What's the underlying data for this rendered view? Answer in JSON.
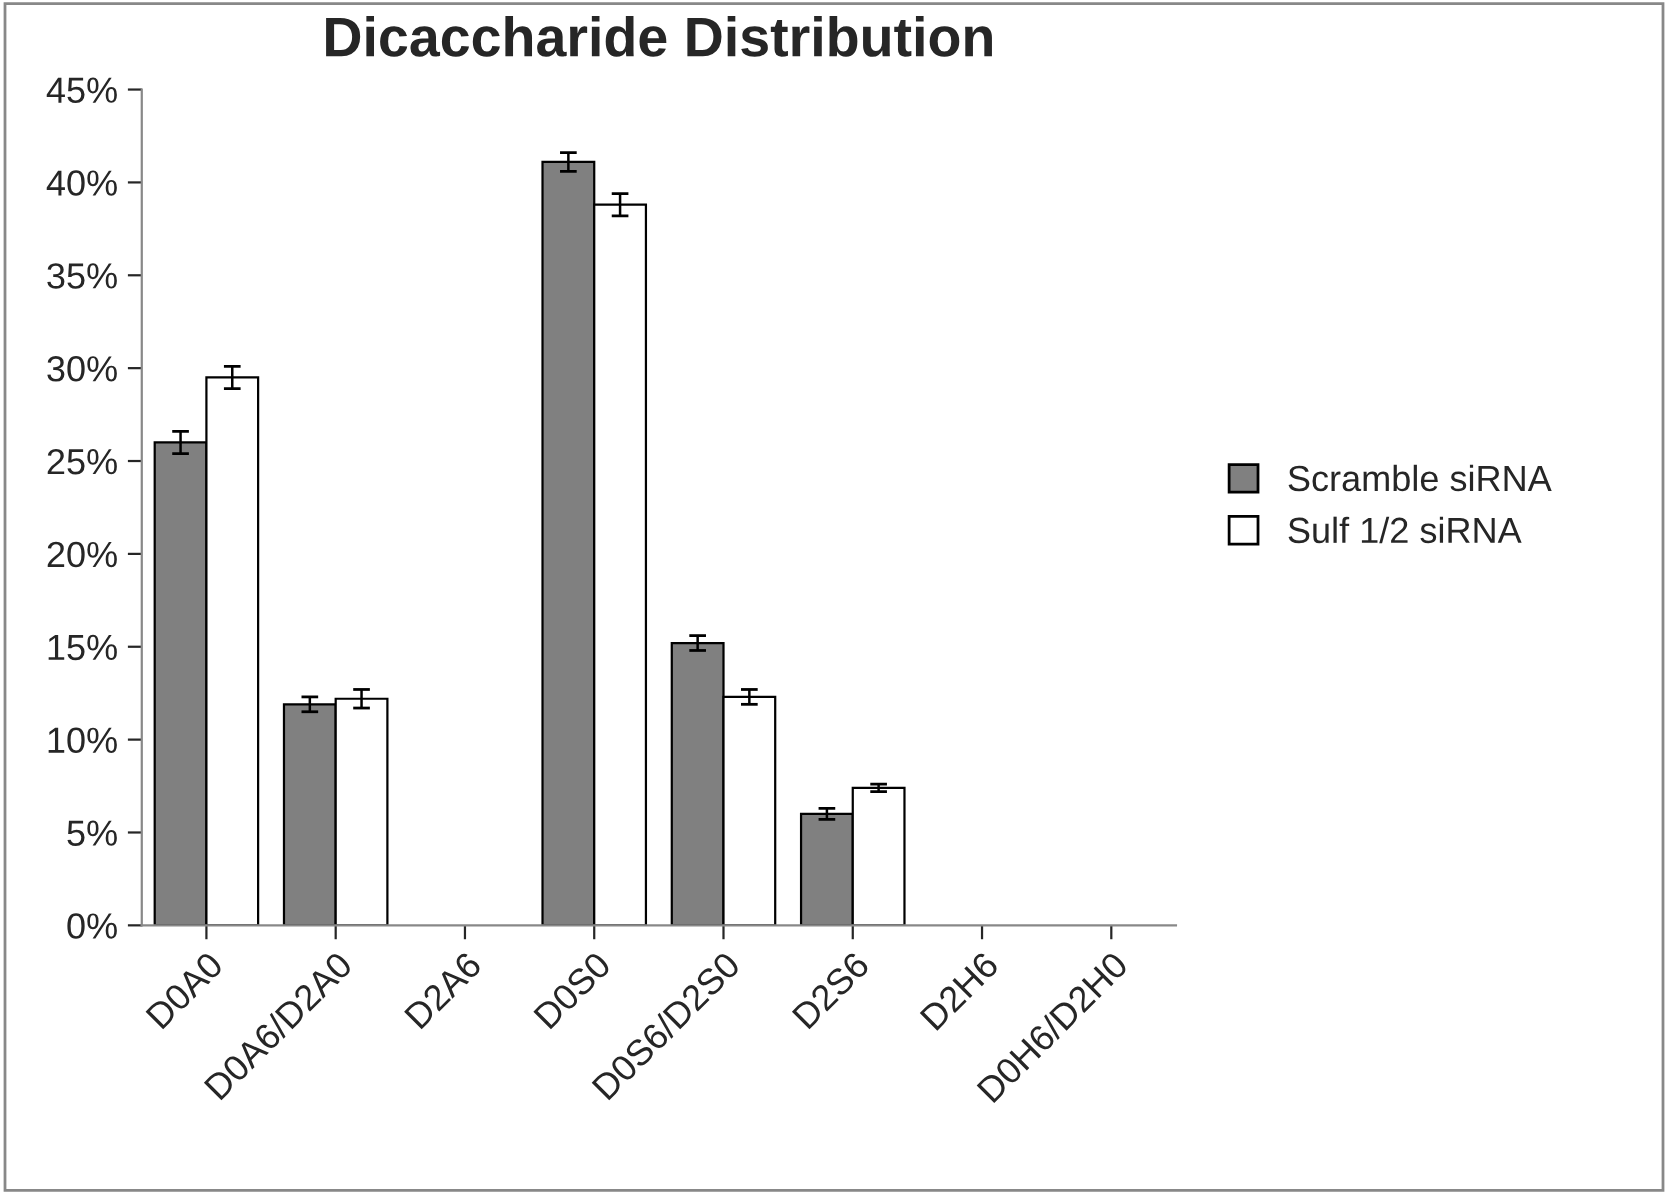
{
  "chart_data": {
    "type": "bar",
    "title": "Dicaccharide Distribution",
    "categories": [
      "D0A0",
      "D0A6/D2A0",
      "D2A6",
      "D0S0",
      "D0S6/D2S0",
      "D2S6",
      "D2H6",
      "D0H6/D2H0"
    ],
    "series": [
      {
        "name": "Scramble siRNA",
        "color": "#808080",
        "values": [
          26.0,
          11.9,
          0,
          41.1,
          15.2,
          6.0,
          0,
          0
        ],
        "errors": [
          0.6,
          0.4,
          null,
          0.5,
          0.4,
          0.3,
          null,
          null
        ]
      },
      {
        "name": "Sulf 1/2 siRNA",
        "color": "#ffffff",
        "values": [
          29.5,
          12.2,
          0,
          38.8,
          12.3,
          7.4,
          0,
          0
        ],
        "errors": [
          0.6,
          0.5,
          null,
          0.6,
          0.4,
          0.2,
          null,
          null
        ]
      }
    ],
    "ylim": [
      0,
      45
    ],
    "yticks": [
      {
        "value": 0,
        "label": "0%"
      },
      {
        "value": 5,
        "label": "5%"
      },
      {
        "value": 10,
        "label": "10%"
      },
      {
        "value": 15,
        "label": "15%"
      },
      {
        "value": 20,
        "label": "20%"
      },
      {
        "value": 25,
        "label": "25%"
      },
      {
        "value": 30,
        "label": "30%"
      },
      {
        "value": 35,
        "label": "35%"
      },
      {
        "value": 40,
        "label": "40%"
      },
      {
        "value": 45,
        "label": "45%"
      }
    ],
    "grid": false,
    "legend": "right"
  }
}
